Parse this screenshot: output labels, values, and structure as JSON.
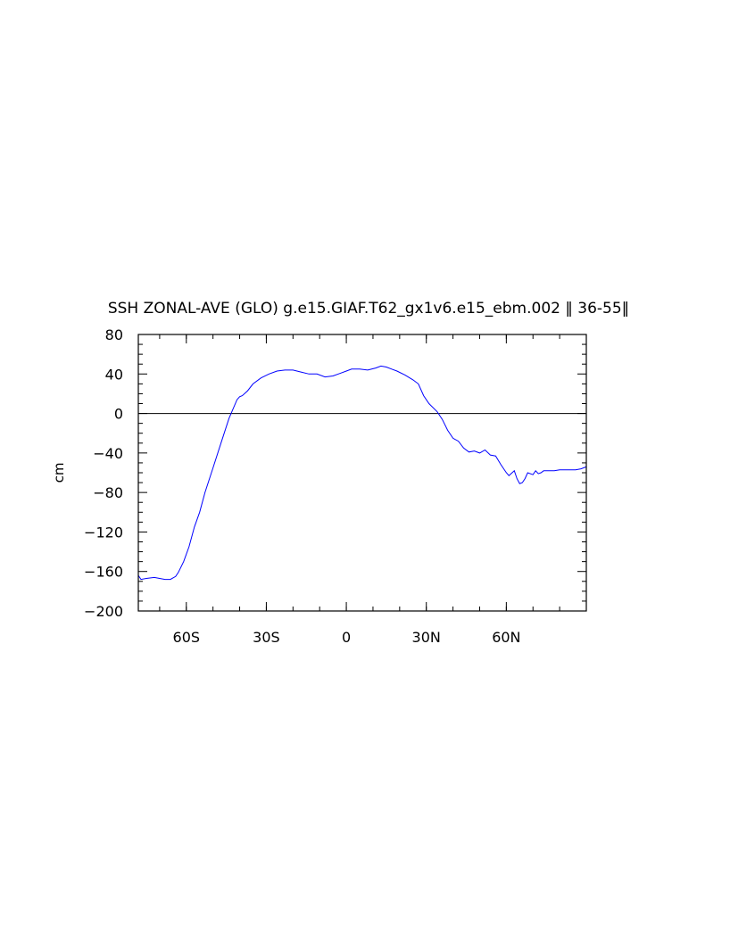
{
  "chart_data": {
    "type": "line",
    "title": "SSH ZONAL-AVE (GLO) g.e15.GIAF.T62_gx1v6.e15_ebm.002 ‖ 36-55‖",
    "xlabel": "",
    "ylabel": "cm",
    "xlim": [
      -78,
      90
    ],
    "ylim": [
      -200,
      80
    ],
    "x_ticks": [
      {
        "value": -60,
        "label": "60S"
      },
      {
        "value": -30,
        "label": "30S"
      },
      {
        "value": 0,
        "label": "0"
      },
      {
        "value": 30,
        "label": "30N"
      },
      {
        "value": 60,
        "label": "60N"
      }
    ],
    "y_ticks": [
      {
        "value": 80,
        "label": "80"
      },
      {
        "value": 40,
        "label": "40"
      },
      {
        "value": 0,
        "label": "0"
      },
      {
        "value": -40,
        "label": "−40"
      },
      {
        "value": -80,
        "label": "−80"
      },
      {
        "value": -120,
        "label": "−120"
      },
      {
        "value": -160,
        "label": "−160"
      },
      {
        "value": -200,
        "label": "−200"
      }
    ],
    "reference_line": {
      "y": 0
    },
    "grid": false,
    "series": [
      {
        "color": "#0000ff",
        "x": [
          -78,
          -77,
          -75,
          -72,
          -70,
          -68,
          -66,
          -64,
          -63,
          -61,
          -59,
          -57,
          -55,
          -53,
          -50,
          -47,
          -44,
          -41,
          -40,
          -39,
          -37,
          -35,
          -32,
          -29,
          -26,
          -23,
          -20,
          -17,
          -14,
          -11,
          -8,
          -5,
          -3,
          0,
          2,
          5,
          8,
          11,
          13,
          15,
          17,
          19,
          22,
          25,
          27,
          29,
          31,
          34,
          36,
          38,
          40,
          42,
          44,
          46,
          48,
          50,
          52,
          54,
          56,
          58,
          60,
          61,
          63,
          64,
          65,
          66,
          67,
          68,
          70,
          71,
          72,
          73,
          74,
          76,
          78,
          80,
          82,
          84,
          86,
          88,
          90
        ],
        "values": [
          -164,
          -168,
          -167,
          -166,
          -167,
          -168,
          -168,
          -165,
          -161,
          -150,
          -135,
          -115,
          -100,
          -80,
          -55,
          -30,
          -5,
          14,
          17,
          18,
          23,
          30,
          36,
          40,
          43,
          44,
          44,
          42,
          40,
          40,
          37,
          38,
          40,
          43,
          45,
          45,
          44,
          46,
          48,
          47,
          45,
          43,
          39,
          34,
          30,
          18,
          10,
          2,
          -6,
          -17,
          -25,
          -28,
          -35,
          -39,
          -38,
          -40,
          -37,
          -42,
          -43,
          -52,
          -60,
          -63,
          -58,
          -66,
          -71,
          -70,
          -66,
          -60,
          -62,
          -58,
          -61,
          -60,
          -58,
          -58,
          -58,
          -57,
          -57,
          -57,
          -57,
          -56,
          -54
        ]
      }
    ]
  }
}
